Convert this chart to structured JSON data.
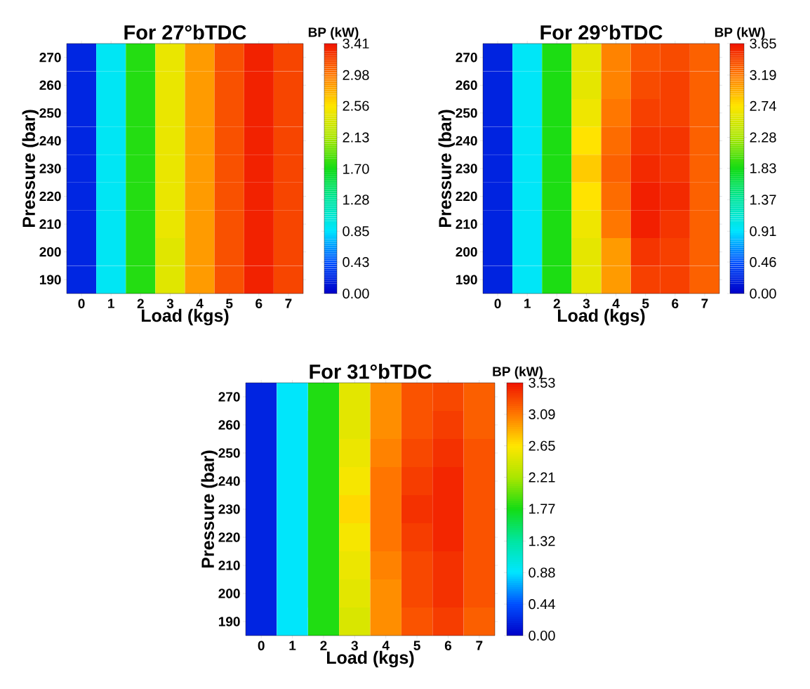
{
  "chart_data": [
    {
      "type": "heatmap",
      "title": "For 27°bTDC",
      "xlabel": "Load (kgs)",
      "ylabel": "Pressure (bar)",
      "clabel": "BP (kW)",
      "categories": [
        "0",
        "1",
        "2",
        "3",
        "4",
        "5",
        "6",
        "7"
      ],
      "y_categories": [
        "270",
        "260",
        "250",
        "240",
        "230",
        "220",
        "210",
        "200",
        "190"
      ],
      "cells": [
        [
          0.2,
          0.9,
          1.75,
          2.45,
          2.85,
          3.15,
          3.35,
          3.2
        ],
        [
          0.2,
          0.9,
          1.75,
          2.45,
          2.85,
          3.15,
          3.35,
          3.2
        ],
        [
          0.2,
          0.9,
          1.75,
          2.45,
          2.85,
          3.15,
          3.35,
          3.2
        ],
        [
          0.2,
          0.9,
          1.75,
          2.45,
          2.85,
          3.15,
          3.35,
          3.2
        ],
        [
          0.2,
          0.9,
          1.75,
          2.45,
          2.85,
          3.15,
          3.35,
          3.2
        ],
        [
          0.2,
          0.9,
          1.75,
          2.45,
          2.85,
          3.15,
          3.35,
          3.2
        ],
        [
          0.2,
          0.9,
          1.75,
          2.45,
          2.85,
          3.15,
          3.35,
          3.2
        ],
        [
          0.2,
          0.9,
          1.75,
          2.4,
          2.85,
          3.15,
          3.35,
          3.2
        ],
        [
          0.2,
          0.9,
          1.75,
          2.4,
          2.85,
          3.15,
          3.35,
          3.2
        ]
      ],
      "clim": [
        0,
        3.41
      ],
      "cticks": [
        {
          "value": 0,
          "label": "0.00"
        },
        {
          "value": 0.43,
          "label": "0.43"
        },
        {
          "value": 0.85,
          "label": "0.85"
        },
        {
          "value": 1.28,
          "label": "1.28"
        },
        {
          "value": 1.7,
          "label": "1.70"
        },
        {
          "value": 2.13,
          "label": "2.13"
        },
        {
          "value": 2.56,
          "label": "2.56"
        },
        {
          "value": 2.98,
          "label": "2.98"
        },
        {
          "value": 3.41,
          "label": "3.41"
        }
      ]
    },
    {
      "type": "heatmap",
      "title": "For 29°bTDC",
      "xlabel": "Load (kgs)",
      "ylabel": "Pressure (bar)",
      "clabel": "BP (kW)",
      "categories": [
        "0",
        "1",
        "2",
        "3",
        "4",
        "5",
        "6",
        "7"
      ],
      "y_categories": [
        "270",
        "260",
        "250",
        "240",
        "230",
        "220",
        "210",
        "200",
        "190"
      ],
      "cells": [
        [
          0.2,
          0.95,
          1.85,
          2.6,
          3.15,
          3.35,
          3.4,
          3.3
        ],
        [
          0.2,
          0.95,
          1.85,
          2.6,
          3.15,
          3.4,
          3.45,
          3.3
        ],
        [
          0.2,
          0.95,
          1.85,
          2.65,
          3.2,
          3.45,
          3.45,
          3.3
        ],
        [
          0.2,
          0.95,
          1.85,
          2.75,
          3.25,
          3.5,
          3.5,
          3.3
        ],
        [
          0.2,
          0.95,
          1.85,
          2.85,
          3.3,
          3.55,
          3.5,
          3.3
        ],
        [
          0.2,
          0.95,
          1.85,
          2.75,
          3.25,
          3.6,
          3.55,
          3.3
        ],
        [
          0.2,
          0.95,
          1.85,
          2.65,
          3.2,
          3.6,
          3.5,
          3.3
        ],
        [
          0.2,
          0.95,
          1.85,
          2.6,
          3.05,
          3.5,
          3.45,
          3.3
        ],
        [
          0.2,
          0.95,
          1.85,
          2.6,
          3.05,
          3.45,
          3.45,
          3.3
        ]
      ],
      "clim": [
        0,
        3.65
      ],
      "cticks": [
        {
          "value": 0,
          "label": "0.00"
        },
        {
          "value": 0.46,
          "label": "0.46"
        },
        {
          "value": 0.91,
          "label": "0.91"
        },
        {
          "value": 1.37,
          "label": "1.37"
        },
        {
          "value": 1.83,
          "label": "1.83"
        },
        {
          "value": 2.28,
          "label": "2.28"
        },
        {
          "value": 2.74,
          "label": "2.74"
        },
        {
          "value": 3.19,
          "label": "3.19"
        },
        {
          "value": 3.65,
          "label": "3.65"
        }
      ]
    },
    {
      "type": "heatmap",
      "title": "For 31°bTDC",
      "xlabel": "Load (kgs)",
      "ylabel": "Pressure (bar)",
      "clabel": "BP (kW)",
      "categories": [
        "0",
        "1",
        "2",
        "3",
        "4",
        "5",
        "6",
        "7"
      ],
      "y_categories": [
        "270",
        "260",
        "250",
        "240",
        "230",
        "220",
        "210",
        "200",
        "190"
      ],
      "cells": [
        [
          0.2,
          0.9,
          1.8,
          2.5,
          3.0,
          3.25,
          3.3,
          3.2
        ],
        [
          0.2,
          0.9,
          1.8,
          2.5,
          3.0,
          3.25,
          3.35,
          3.2
        ],
        [
          0.2,
          0.9,
          1.8,
          2.55,
          3.05,
          3.3,
          3.4,
          3.25
        ],
        [
          0.2,
          0.9,
          1.8,
          2.6,
          3.1,
          3.35,
          3.45,
          3.25
        ],
        [
          0.2,
          0.9,
          1.8,
          2.7,
          3.1,
          3.4,
          3.45,
          3.25
        ],
        [
          0.2,
          0.9,
          1.8,
          2.6,
          3.1,
          3.35,
          3.45,
          3.25
        ],
        [
          0.2,
          0.9,
          1.8,
          2.55,
          3.05,
          3.3,
          3.4,
          3.25
        ],
        [
          0.2,
          0.9,
          1.8,
          2.5,
          3.0,
          3.3,
          3.4,
          3.25
        ],
        [
          0.2,
          0.9,
          1.8,
          2.45,
          3.0,
          3.25,
          3.35,
          3.2
        ]
      ],
      "clim": [
        0,
        3.53
      ],
      "cticks": [
        {
          "value": 0,
          "label": "0.00"
        },
        {
          "value": 0.44,
          "label": "0.44"
        },
        {
          "value": 0.88,
          "label": "0.88"
        },
        {
          "value": 1.32,
          "label": "1.32"
        },
        {
          "value": 1.77,
          "label": "1.77"
        },
        {
          "value": 2.21,
          "label": "2.21"
        },
        {
          "value": 2.65,
          "label": "2.65"
        },
        {
          "value": 3.09,
          "label": "3.09"
        },
        {
          "value": 3.53,
          "label": "3.53"
        }
      ]
    }
  ]
}
